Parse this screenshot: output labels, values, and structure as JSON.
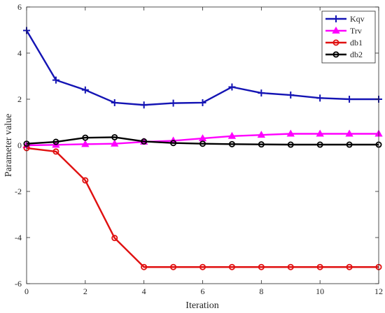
{
  "chart_data": {
    "type": "line",
    "title": "",
    "xlabel": "Iteration",
    "ylabel": "Parameter value",
    "xlim": [
      0,
      12
    ],
    "ylim": [
      -6,
      6
    ],
    "xticks": [
      0,
      2,
      4,
      6,
      8,
      10,
      12
    ],
    "yticks": [
      -6,
      -4,
      -2,
      0,
      2,
      4,
      6
    ],
    "grid": false,
    "legend_position": "top-right",
    "x": [
      0,
      1,
      2,
      3,
      4,
      5,
      6,
      7,
      8,
      9,
      10,
      11,
      12
    ],
    "series": [
      {
        "name": "Kqv",
        "color": "#1414b4",
        "marker": "plus",
        "values": [
          4.98,
          2.83,
          2.4,
          1.85,
          1.75,
          1.83,
          1.85,
          2.53,
          2.27,
          2.18,
          2.05,
          2.0,
          2.0
        ]
      },
      {
        "name": "Trv",
        "color": "#ff00ff",
        "marker": "triangle",
        "values": [
          0.0,
          0.02,
          0.05,
          0.07,
          0.15,
          0.2,
          0.3,
          0.4,
          0.45,
          0.5,
          0.5,
          0.5,
          0.5
        ]
      },
      {
        "name": "db1",
        "color": "#e01010",
        "marker": "circle",
        "values": [
          -0.12,
          -0.27,
          -1.52,
          -4.02,
          -5.28,
          -5.28,
          -5.28,
          -5.28,
          -5.28,
          -5.28,
          -5.28,
          -5.28,
          -5.28
        ]
      },
      {
        "name": "db2",
        "color": "#000000",
        "marker": "circle",
        "values": [
          0.07,
          0.15,
          0.33,
          0.35,
          0.17,
          0.1,
          0.07,
          0.05,
          0.04,
          0.03,
          0.03,
          0.03,
          0.03
        ]
      }
    ]
  }
}
